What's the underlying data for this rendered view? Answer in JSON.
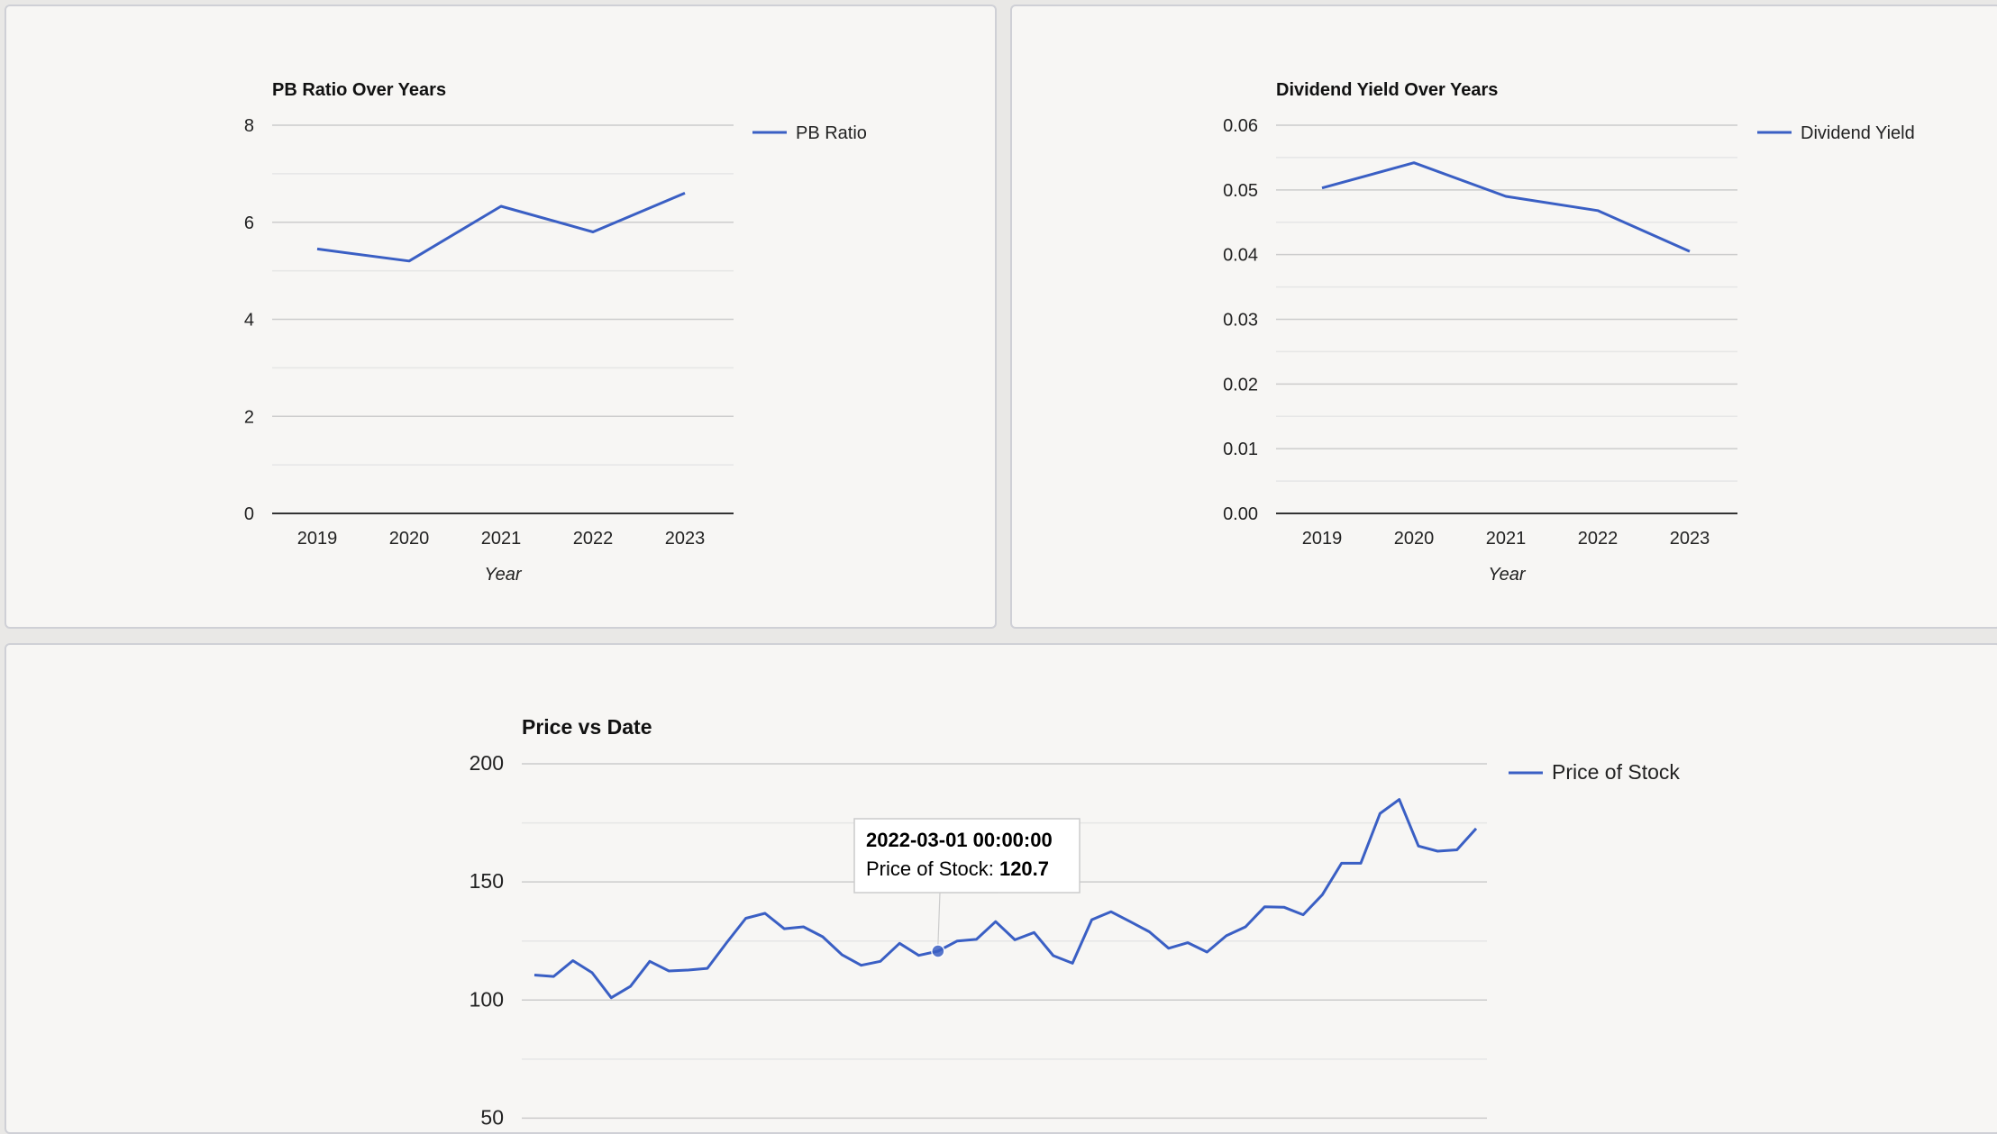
{
  "colors": {
    "series": "#3a5fc4",
    "grid": "#cccccc",
    "minor_grid": "#e6e6e6",
    "axis": "#333333",
    "tooltip_border": "#cccccc"
  },
  "chart_data": [
    {
      "id": "pb",
      "type": "line",
      "title": "PB Ratio Over Years",
      "xlabel": "Year",
      "ylabel": "",
      "categories": [
        "2019",
        "2020",
        "2021",
        "2022",
        "2023"
      ],
      "series": [
        {
          "name": "PB Ratio",
          "values": [
            5.45,
            5.2,
            6.33,
            5.8,
            6.6
          ]
        }
      ],
      "ylim": [
        0,
        8
      ],
      "yticks": [
        "0",
        "2",
        "4",
        "6",
        "8"
      ],
      "grid": true,
      "legend": "right"
    },
    {
      "id": "dy",
      "type": "line",
      "title": "Dividend Yield Over Years",
      "xlabel": "Year",
      "ylabel": "",
      "categories": [
        "2019",
        "2020",
        "2021",
        "2022",
        "2023"
      ],
      "series": [
        {
          "name": "Dividend Yield",
          "values": [
            0.0503,
            0.0542,
            0.049,
            0.0468,
            0.0405
          ]
        }
      ],
      "ylim": [
        0,
        0.06
      ],
      "yticks": [
        "0.00",
        "0.01",
        "0.02",
        "0.03",
        "0.04",
        "0.05",
        "0.06"
      ],
      "grid": true,
      "legend": "right"
    },
    {
      "id": "price",
      "type": "line",
      "title": "Price vs Date",
      "xlabel": "",
      "ylabel": "",
      "series": [
        {
          "name": "Price of Stock",
          "values": [
            110.6,
            110.0,
            116.7,
            111.6,
            101.0,
            105.8,
            116.4,
            112.3,
            112.7,
            113.4,
            124.3,
            134.6,
            136.7,
            130.2,
            131.0,
            126.8,
            119.2,
            114.7,
            116.4,
            124.0,
            118.9,
            120.7,
            125.0,
            125.7,
            133.2,
            125.5,
            128.6,
            118.8,
            115.6,
            134.0,
            137.4,
            133.2,
            128.9,
            121.9,
            124.3,
            120.3,
            127.2,
            131.0,
            139.5,
            139.3,
            136.1,
            144.6,
            157.9,
            157.9,
            179.0,
            184.9,
            165.2,
            163.0,
            163.6,
            172.6
          ]
        }
      ],
      "ylim": [
        25,
        200
      ],
      "yticks": [
        "50",
        "100",
        "150",
        "200"
      ],
      "grid": true,
      "legend": "right",
      "tooltip": {
        "index": 21,
        "date": "2022-03-01 00:00:00",
        "label": "Price of Stock:",
        "value": "120.7"
      }
    }
  ]
}
